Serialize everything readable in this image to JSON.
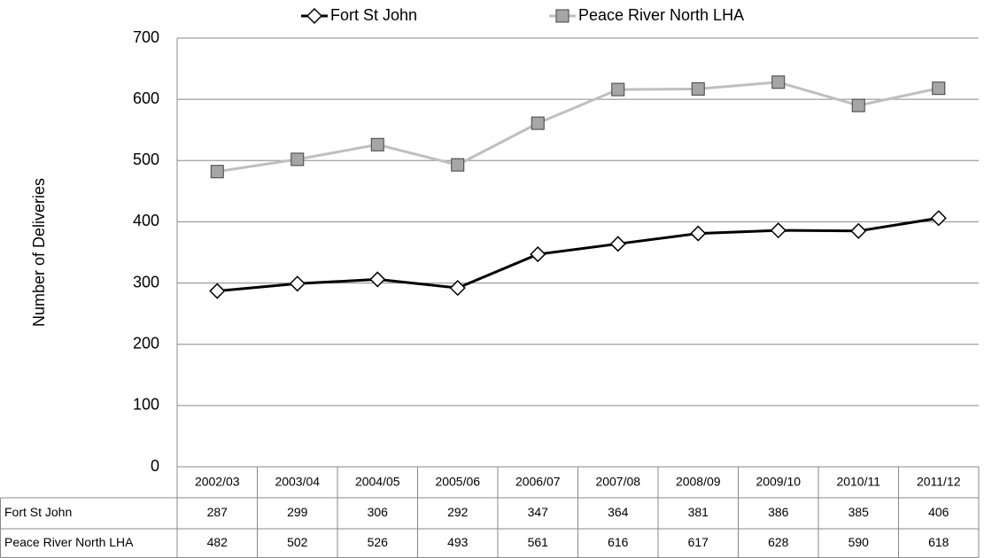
{
  "chart_data": {
    "type": "line",
    "y_label": "Number of Deliveries",
    "categories": [
      "2002/03",
      "2003/04",
      "2004/05",
      "2005/06",
      "2006/07",
      "2007/08",
      "2008/09",
      "2009/10",
      "2010/11",
      "2011/12"
    ],
    "series": [
      {
        "name": "Fort St John",
        "color": "#000000",
        "marker": "diamond",
        "values": [
          287,
          299,
          306,
          292,
          347,
          364,
          381,
          386,
          385,
          406
        ]
      },
      {
        "name": "Peace River North LHA",
        "color": "#bfbfbf",
        "marker": "square",
        "values": [
          482,
          502,
          526,
          493,
          561,
          616,
          617,
          628,
          590,
          618
        ]
      }
    ],
    "ylim": [
      0,
      700
    ],
    "yticks": [
      0,
      100,
      200,
      300,
      400,
      500,
      600,
      700
    ],
    "grid": true,
    "legend": "top"
  }
}
